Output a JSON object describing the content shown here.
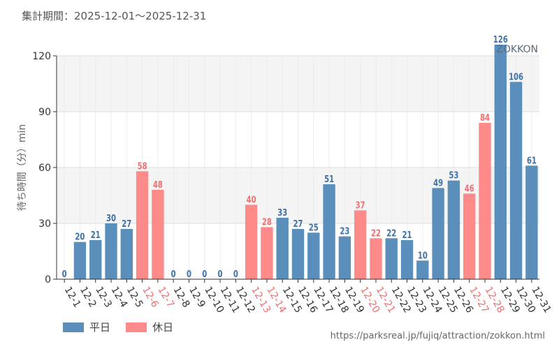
{
  "period_label": "集計期間：2025-12-01～2025-12-31",
  "source_url": "https://parksreal.jp/fujiq/attraction/zokkon.html",
  "colors": {
    "weekday": "#5b8fbb",
    "holiday": "#ff8a8a",
    "weekday_label": "#3c72a7",
    "holiday_label": "#f26f6f"
  },
  "legend": [
    {
      "label": "平日",
      "kind": "weekday"
    },
    {
      "label": "休日",
      "kind": "holiday"
    }
  ],
  "chart_data": {
    "type": "bar",
    "title": "ZOKKON",
    "ylabel": "待ち時間（分）min",
    "xlabel": "",
    "ylim": [
      0,
      120
    ],
    "yticks": [
      0,
      30,
      60,
      90,
      120
    ],
    "categories": [
      "12-1",
      "12-2",
      "12-3",
      "12-4",
      "12-5",
      "12-6",
      "12-7",
      "12-8",
      "12-9",
      "12-10",
      "12-11",
      "12-12",
      "12-13",
      "12-14",
      "12-15",
      "12-16",
      "12-17",
      "12-18",
      "12-19",
      "12-20",
      "12-21",
      "12-22",
      "12-23",
      "12-24",
      "12-25",
      "12-26",
      "12-27",
      "12-28",
      "12-29",
      "12-30",
      "12-31"
    ],
    "values": [
      0,
      20,
      21,
      30,
      27,
      58,
      48,
      0,
      0,
      0,
      0,
      0,
      40,
      28,
      33,
      27,
      25,
      51,
      23,
      37,
      22,
      22,
      21,
      10,
      49,
      53,
      46,
      84,
      126,
      106,
      61
    ],
    "kinds": [
      "weekday",
      "weekday",
      "weekday",
      "weekday",
      "weekday",
      "holiday",
      "holiday",
      "weekday",
      "weekday",
      "weekday",
      "weekday",
      "weekday",
      "holiday",
      "holiday",
      "weekday",
      "weekday",
      "weekday",
      "weekday",
      "weekday",
      "holiday",
      "holiday",
      "weekday",
      "weekday",
      "weekday",
      "weekday",
      "weekday",
      "holiday",
      "holiday",
      "weekday",
      "weekday",
      "weekday"
    ]
  }
}
